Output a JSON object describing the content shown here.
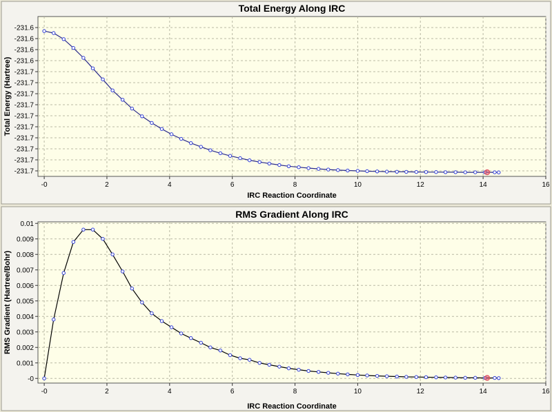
{
  "chart_data": [
    {
      "type": "line",
      "title": "Total Energy Along IRC",
      "xlabel": "IRC Reaction Coordinate",
      "ylabel": "Total Energy (Hartree)",
      "xlim": [
        -0.2,
        16
      ],
      "ylim": [
        -231.725,
        -231.58
      ],
      "xticks": [
        0,
        2,
        4,
        6,
        8,
        10,
        12,
        14,
        16
      ],
      "xtick_labels": [
        "-0",
        "2",
        "4",
        "6",
        "8",
        "10",
        "12",
        "14",
        "16"
      ],
      "yticks": [
        -231.59,
        -231.6,
        -231.61,
        -231.62,
        -231.63,
        -231.64,
        -231.65,
        -231.66,
        -231.67,
        -231.68,
        -231.69,
        -231.7,
        -231.71,
        -231.72
      ],
      "ytick_labels": [
        "-231.6",
        "-231.6",
        "-231.6",
        "-231.6",
        "-231.7",
        "-231.7",
        "-231.7",
        "-231.7",
        "-231.7",
        "-231.7",
        "-231.7",
        "-231.7",
        "-231.7",
        "-231.7"
      ],
      "grid": true,
      "highlight_point_index": 48,
      "line_color": "#2a2a8a",
      "marker_color": "#2e3bd6",
      "highlight_color": "#e05060",
      "series": [
        {
          "x": [
            0,
            0.3,
            0.62,
            0.93,
            1.25,
            1.55,
            1.87,
            2.18,
            2.5,
            2.8,
            3.12,
            3.43,
            3.75,
            4.06,
            4.37,
            4.68,
            5,
            5.3,
            5.62,
            5.93,
            6.25,
            6.55,
            6.87,
            7.18,
            7.5,
            7.8,
            8.12,
            8.43,
            8.75,
            9.06,
            9.37,
            9.68,
            10,
            10.3,
            10.62,
            10.93,
            11.25,
            11.55,
            11.87,
            12.18,
            12.5,
            12.8,
            13.12,
            13.43,
            13.75,
            14.06,
            14.37,
            14.5,
            14.13
          ],
          "y": [
            -231.5932,
            -231.595,
            -231.6005,
            -231.6085,
            -231.6175,
            -231.627,
            -231.637,
            -231.647,
            -231.6555,
            -231.6635,
            -231.6705,
            -231.6765,
            -231.682,
            -231.6868,
            -231.691,
            -231.6948,
            -231.6982,
            -231.7013,
            -231.704,
            -231.7064,
            -231.7085,
            -231.7104,
            -231.712,
            -231.7134,
            -231.7147,
            -231.7158,
            -231.7167,
            -231.7175,
            -231.7182,
            -231.7188,
            -231.7193,
            -231.7197,
            -231.72,
            -231.7203,
            -231.7205,
            -231.7207,
            -231.7208,
            -231.7209,
            -231.721,
            -231.7211,
            -231.7211,
            -231.7212,
            -231.7212,
            -231.7213,
            -231.7213,
            -231.7213,
            -231.7213,
            -231.7214,
            -231.7213
          ]
        }
      ]
    },
    {
      "type": "line",
      "title": "RMS Gradient Along IRC",
      "xlabel": "IRC Reaction Coordinate",
      "ylabel": "RMS Gradient (Hartree/Bohr)",
      "xlim": [
        -0.2,
        16
      ],
      "ylim": [
        -0.0003,
        0.0101
      ],
      "xticks": [
        0,
        2,
        4,
        6,
        8,
        10,
        12,
        14,
        16
      ],
      "xtick_labels": [
        "-0",
        "2",
        "4",
        "6",
        "8",
        "10",
        "12",
        "14",
        "16"
      ],
      "yticks": [
        0,
        0.001,
        0.002,
        0.003,
        0.004,
        0.005,
        0.006,
        0.007,
        0.008,
        0.009,
        0.01
      ],
      "ytick_labels": [
        "-0",
        "0.001",
        "0.002",
        "0.003",
        "0.004",
        "0.005",
        "0.006",
        "0.007",
        "0.008",
        "0.009",
        "0.01"
      ],
      "grid": true,
      "highlight_point_index": 48,
      "line_color": "#000000",
      "marker_color": "#2e3bd6",
      "highlight_color": "#e05060",
      "series": [
        {
          "x": [
            0,
            0.3,
            0.62,
            0.93,
            1.25,
            1.55,
            1.87,
            2.18,
            2.5,
            2.8,
            3.12,
            3.43,
            3.75,
            4.06,
            4.37,
            4.68,
            5,
            5.3,
            5.62,
            5.93,
            6.25,
            6.55,
            6.87,
            7.18,
            7.5,
            7.8,
            8.12,
            8.43,
            8.75,
            9.06,
            9.37,
            9.68,
            10,
            10.3,
            10.62,
            10.93,
            11.25,
            11.55,
            11.87,
            12.18,
            12.5,
            12.8,
            13.12,
            13.43,
            13.75,
            14.06,
            14.37,
            14.5,
            14.13
          ],
          "y": [
            0.0,
            0.0038,
            0.0068,
            0.0088,
            0.0096,
            0.0096,
            0.009,
            0.008,
            0.0069,
            0.0058,
            0.0049,
            0.0042,
            0.0037,
            0.0033,
            0.0029,
            0.0026,
            0.0023,
            0.002,
            0.0018,
            0.0015,
            0.0013,
            0.0012,
            0.001,
            0.00088,
            0.00076,
            0.00065,
            0.00056,
            0.00048,
            0.00042,
            0.00036,
            0.00031,
            0.00026,
            0.00022,
            0.00019,
            0.00016,
            0.00014,
            0.00012,
            0.0001,
            9e-05,
            8e-05,
            7e-05,
            6e-05,
            5e-05,
            4e-05,
            4e-05,
            3e-05,
            3e-05,
            2e-05,
            3e-05
          ]
        }
      ]
    }
  ]
}
